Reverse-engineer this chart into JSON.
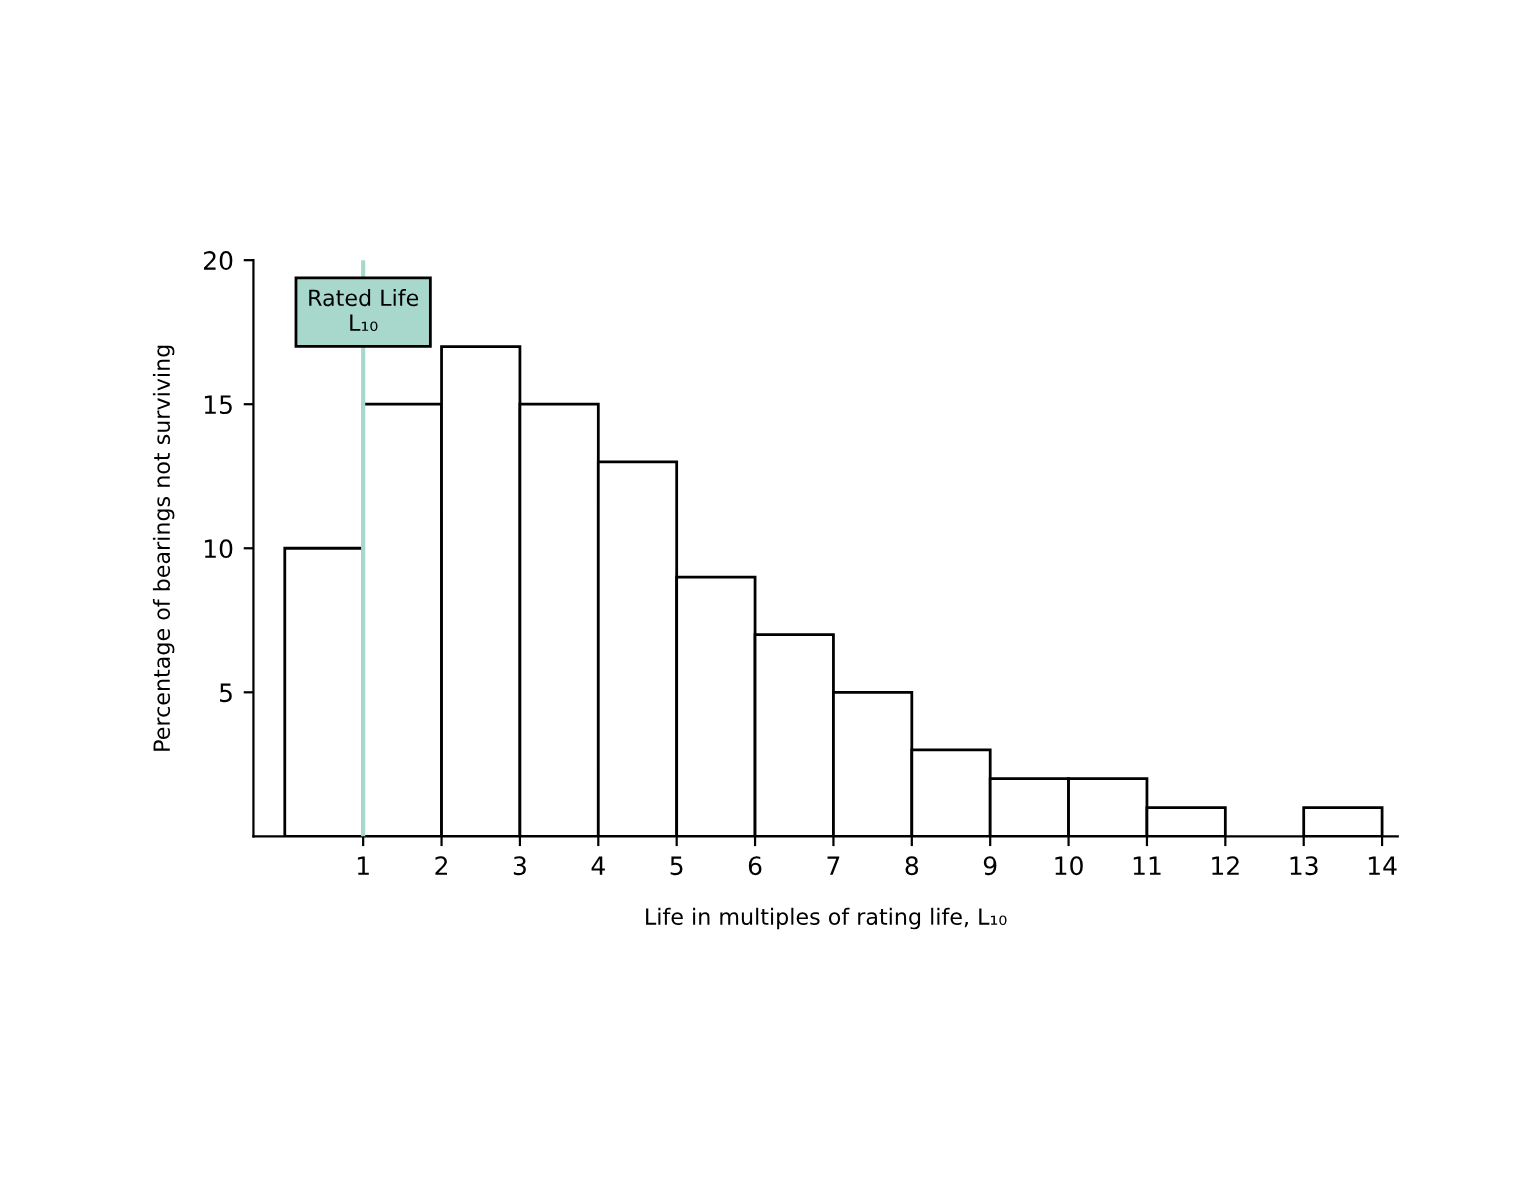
{
  "chart_data": {
    "type": "histogram",
    "xlabel": "Life in multiples of rating life, L₁₀",
    "ylabel": "Percentage of bearings not surviving",
    "bins": [
      0,
      1,
      2,
      3,
      4,
      5,
      6,
      7,
      8,
      9,
      10,
      11,
      12,
      13,
      14
    ],
    "values": [
      10,
      15,
      17,
      15,
      13,
      9,
      7,
      5,
      3,
      2,
      2,
      1,
      0,
      1
    ],
    "color": "#ffffff",
    "xlim": [
      -0.4,
      14.2
    ],
    "ylim": [
      0,
      20
    ],
    "xticks": [
      1,
      2,
      3,
      4,
      5,
      6,
      7,
      8,
      9,
      10,
      11,
      12,
      13,
      14
    ],
    "yticks": [
      5,
      10,
      15,
      20
    ],
    "ref_lines": [
      {
        "axis": "x",
        "value": 1,
        "label": "Rated Life\nL₁₀",
        "color": "#a8d8cc"
      }
    ],
    "grid": false,
    "legend": false
  }
}
